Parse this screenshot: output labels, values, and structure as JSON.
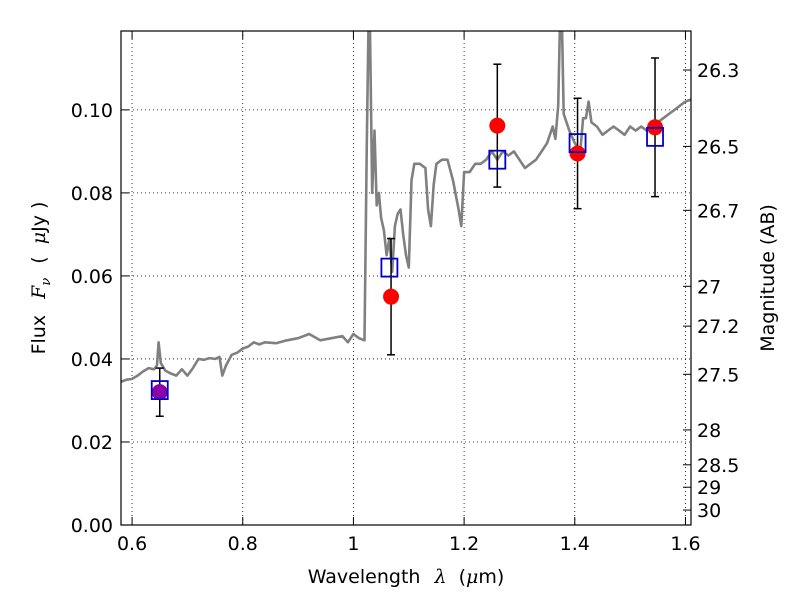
{
  "chart_data": {
    "type": "scatter",
    "xlabel_text": "Wavelength",
    "xlabel_symbol": "λ",
    "xlabel_unit_open": "(",
    "xlabel_unit_mu": "μ",
    "xlabel_unit_rest": "m)",
    "ylabel_text": "Flux",
    "ylabel_symbol": "F",
    "ylabel_sub": "ν",
    "ylabel_unit_open": "(",
    "ylabel_unit_mu": "μ",
    "ylabel_unit_rest": "Jy )",
    "y2label": "Magnitude (AB)",
    "xlim": [
      0.58,
      1.61
    ],
    "ylim": [
      0.0,
      0.119
    ],
    "grid": true,
    "x_ticks": [
      0.6,
      0.8,
      1.0,
      1.2,
      1.4,
      1.6
    ],
    "x_tick_labels": [
      "0.6",
      "0.8",
      "1",
      "1.2",
      "1.4",
      "1.6"
    ],
    "y_ticks": [
      0.0,
      0.02,
      0.04,
      0.06,
      0.08,
      0.1
    ],
    "y_tick_labels": [
      "0.00",
      "0.02",
      "0.04",
      "0.06",
      "0.08",
      "0.10"
    ],
    "y2_ticks": [
      {
        "label": "26.3",
        "flux": 0.1096
      },
      {
        "label": "26.5",
        "flux": 0.0912
      },
      {
        "label": "26.7",
        "flux": 0.0758
      },
      {
        "label": "27",
        "flux": 0.0575
      },
      {
        "label": "27.2",
        "flux": 0.0479
      },
      {
        "label": "27.5",
        "flux": 0.0363
      },
      {
        "label": "28",
        "flux": 0.0229
      },
      {
        "label": "28.5",
        "flux": 0.0145
      },
      {
        "label": "29",
        "flux": 0.0091
      },
      {
        "label": "30",
        "flux": 0.0036
      }
    ],
    "series": [
      {
        "kind": "line",
        "color": "#808080",
        "points": [
          [
            0.58,
            0.0345
          ],
          [
            0.59,
            0.035
          ],
          [
            0.6,
            0.0352
          ],
          [
            0.61,
            0.036
          ],
          [
            0.62,
            0.037
          ],
          [
            0.63,
            0.0378
          ],
          [
            0.64,
            0.0375
          ],
          [
            0.645,
            0.0385
          ],
          [
            0.648,
            0.044
          ],
          [
            0.652,
            0.039
          ],
          [
            0.66,
            0.0372
          ],
          [
            0.67,
            0.0365
          ],
          [
            0.68,
            0.036
          ],
          [
            0.69,
            0.0375
          ],
          [
            0.7,
            0.036
          ],
          [
            0.71,
            0.0378
          ],
          [
            0.72,
            0.04
          ],
          [
            0.73,
            0.0398
          ],
          [
            0.74,
            0.0402
          ],
          [
            0.75,
            0.04
          ],
          [
            0.758,
            0.0405
          ],
          [
            0.763,
            0.036
          ],
          [
            0.77,
            0.0385
          ],
          [
            0.78,
            0.041
          ],
          [
            0.79,
            0.0415
          ],
          [
            0.8,
            0.0425
          ],
          [
            0.81,
            0.043
          ],
          [
            0.82,
            0.044
          ],
          [
            0.83,
            0.0435
          ],
          [
            0.84,
            0.044
          ],
          [
            0.86,
            0.0438
          ],
          [
            0.88,
            0.0445
          ],
          [
            0.9,
            0.045
          ],
          [
            0.92,
            0.046
          ],
          [
            0.94,
            0.0445
          ],
          [
            0.96,
            0.045
          ],
          [
            0.98,
            0.0455
          ],
          [
            0.99,
            0.044
          ],
          [
            1.0,
            0.046
          ],
          [
            1.01,
            0.045
          ],
          [
            1.02,
            0.0445
          ],
          [
            1.024,
            0.09
          ],
          [
            1.027,
            0.119
          ],
          [
            1.03,
            0.119
          ],
          [
            1.034,
            0.08
          ],
          [
            1.038,
            0.095
          ],
          [
            1.042,
            0.077
          ],
          [
            1.046,
            0.08
          ],
          [
            1.05,
            0.074
          ],
          [
            1.055,
            0.071
          ],
          [
            1.06,
            0.065
          ],
          [
            1.065,
            0.069
          ],
          [
            1.07,
            0.061
          ],
          [
            1.075,
            0.072
          ],
          [
            1.08,
            0.075
          ],
          [
            1.085,
            0.076
          ],
          [
            1.09,
            0.07
          ],
          [
            1.095,
            0.065
          ],
          [
            1.1,
            0.062
          ],
          [
            1.105,
            0.083
          ],
          [
            1.11,
            0.087
          ],
          [
            1.12,
            0.087
          ],
          [
            1.13,
            0.086
          ],
          [
            1.135,
            0.076
          ],
          [
            1.14,
            0.072
          ],
          [
            1.145,
            0.082
          ],
          [
            1.15,
            0.087
          ],
          [
            1.16,
            0.088
          ],
          [
            1.17,
            0.088
          ],
          [
            1.18,
            0.083
          ],
          [
            1.19,
            0.076
          ],
          [
            1.195,
            0.072
          ],
          [
            1.2,
            0.085
          ],
          [
            1.21,
            0.085
          ],
          [
            1.22,
            0.087
          ],
          [
            1.23,
            0.087
          ],
          [
            1.24,
            0.088
          ],
          [
            1.25,
            0.09
          ],
          [
            1.26,
            0.088
          ],
          [
            1.27,
            0.09
          ],
          [
            1.28,
            0.089
          ],
          [
            1.29,
            0.09
          ],
          [
            1.3,
            0.088
          ],
          [
            1.31,
            0.086
          ],
          [
            1.32,
            0.087
          ],
          [
            1.33,
            0.088
          ],
          [
            1.34,
            0.09
          ],
          [
            1.35,
            0.092
          ],
          [
            1.36,
            0.096
          ],
          [
            1.365,
            0.093
          ],
          [
            1.37,
            0.101
          ],
          [
            1.373,
            0.119
          ],
          [
            1.377,
            0.119
          ],
          [
            1.38,
            0.099
          ],
          [
            1.39,
            0.095
          ],
          [
            1.4,
            0.092
          ],
          [
            1.41,
            0.09
          ],
          [
            1.415,
            0.098
          ],
          [
            1.42,
            0.098
          ],
          [
            1.425,
            0.102
          ],
          [
            1.43,
            0.097
          ],
          [
            1.44,
            0.096
          ],
          [
            1.45,
            0.094
          ],
          [
            1.46,
            0.095
          ],
          [
            1.47,
            0.096
          ],
          [
            1.48,
            0.095
          ],
          [
            1.49,
            0.094
          ],
          [
            1.5,
            0.096
          ],
          [
            1.51,
            0.095
          ],
          [
            1.52,
            0.096
          ],
          [
            1.53,
            0.095
          ],
          [
            1.54,
            0.096
          ],
          [
            1.55,
            0.097
          ],
          [
            1.56,
            0.098
          ],
          [
            1.57,
            0.099
          ],
          [
            1.58,
            0.1
          ],
          [
            1.59,
            0.101
          ],
          [
            1.6,
            0.102
          ],
          [
            1.61,
            0.1025
          ]
        ]
      },
      {
        "kind": "errorbar-points",
        "color": "#ff0000",
        "points": [
          {
            "x": 1.068,
            "y": 0.055,
            "err": 0.014
          },
          {
            "x": 1.26,
            "y": 0.0962,
            "err": 0.0148
          },
          {
            "x": 1.405,
            "y": 0.0895,
            "err": 0.0133
          },
          {
            "x": 1.545,
            "y": 0.0958,
            "err": 0.0167
          }
        ]
      },
      {
        "kind": "errorbar-points",
        "color": "#8b00a8",
        "points": [
          {
            "x": 0.65,
            "y": 0.032,
            "err": 0.0058
          }
        ]
      },
      {
        "kind": "squares",
        "color": "#0000cc",
        "points": [
          {
            "x": 0.65,
            "y": 0.0325
          },
          {
            "x": 1.065,
            "y": 0.062
          },
          {
            "x": 1.26,
            "y": 0.088
          },
          {
            "x": 1.405,
            "y": 0.092
          },
          {
            "x": 1.545,
            "y": 0.0935
          }
        ]
      }
    ]
  }
}
